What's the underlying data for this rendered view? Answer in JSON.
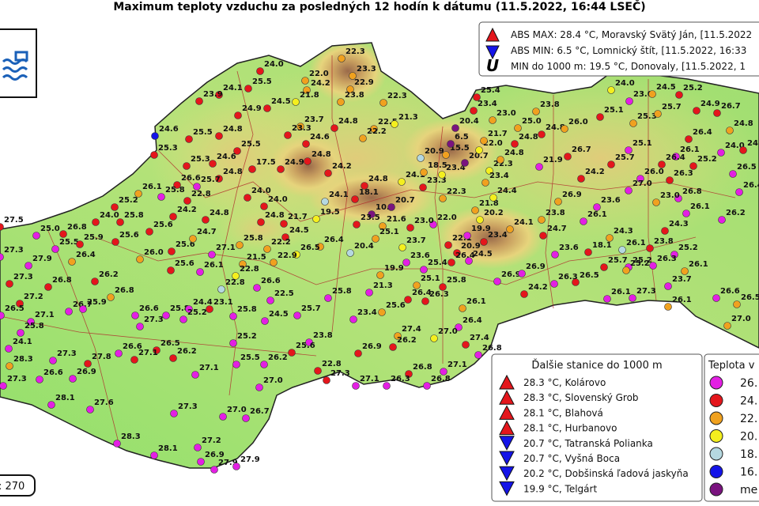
{
  "header": {
    "title": "Maximum teploty vzduchu za posledných 12 hodín k dátumu (11.5.2022, 16:44 LSEČ)"
  },
  "extremes": {
    "items": [
      "ABS MAX: 28.4 °C, Moravský Svätý Ján, [11.5.2022",
      "ABS MIN: 6.5 °C, Lomnický štít, [11.5.2022, 16:33",
      "MIN do 1000 m: 19.5 °C, Donovaly, [11.5.2022, 1"
    ]
  },
  "station_count": ": 270",
  "stations": {
    "labels": [
      "24.0",
      "25.5",
      "24.1",
      "23.9",
      "24.9",
      "24.5",
      "22.3",
      "22.0",
      "23.3",
      "24.2",
      "22.9",
      "21.8",
      "23.8",
      "22.3",
      "23.7",
      "24.8",
      "22.5",
      "21.3",
      "22.2",
      "23.3",
      "24.6",
      "24.8",
      "24.9",
      "25.5",
      "24.6",
      "24.8",
      "25.3",
      "17.5",
      "24.6",
      "25.5",
      "24.8",
      "25.3",
      "26.6",
      "25.7",
      "22.8",
      "26.1",
      "25.8",
      "25.2",
      "24.0",
      "25.8",
      "26.8",
      "25.0",
      "27.5",
      "25.5",
      "25.9",
      "25.6",
      "25.6",
      "24.2",
      "24.8",
      "24.0",
      "24.0",
      "24.8",
      "21.7",
      "19.5",
      "24.1",
      "18.1",
      "10.4",
      "20.7",
      "24.1",
      "24.8",
      "24.2",
      "23.3",
      "22.3",
      "18.5",
      "20.9",
      "23.4",
      "15.5",
      "6.5",
      "20.4",
      "20.7",
      "22.0",
      "21.7",
      "22.3",
      "23.4",
      "21.8",
      "20.2",
      "24.4",
      "23.4",
      "24.1",
      "24.7",
      "23.8",
      "26.9",
      "26.1",
      "23.6",
      "24.3",
      "18.1",
      "26.1",
      "25.2",
      "25.4",
      "23.4",
      "23.0",
      "23.8",
      "25.0",
      "24.8",
      "26.0",
      "24.8",
      "24.8",
      "21.9",
      "26.7",
      "24.2",
      "24.0",
      "23.0",
      "25.1",
      "25.3",
      "24.5",
      "25.2",
      "25.7",
      "24.9",
      "26.7",
      "24.8",
      "26.4",
      "26.1",
      "24.0",
      "24.8",
      "25.1",
      "25.7",
      "26.4",
      "25.2",
      "26.0",
      "26.3",
      "27.0",
      "26.5",
      "26.4",
      "26.8",
      "23.0",
      "26.1",
      "26.2",
      "24.3",
      "23.8",
      "25.2",
      "26.3",
      "25.7",
      "25.2",
      "26.1",
      "23.7",
      "26.6",
      "26.1",
      "27.3",
      "26.1",
      "26.5",
      "27.0",
      "26.5",
      "26.3",
      "24.2",
      "26.9",
      "26.9",
      "23.6",
      "24.5",
      "22.1",
      "20.9",
      "26.4",
      "19.9",
      "22.0",
      "23.0",
      "21.6",
      "25.1",
      "23.5",
      "23.7",
      "23.6",
      "20.4",
      "19.9",
      "26.4",
      "26.5",
      "24.5",
      "22.9",
      "22.2",
      "21.5",
      "25.8",
      "22.8",
      "22.8",
      "27.1",
      "26.1",
      "25.6",
      "25.6",
      "24.7",
      "26.0",
      "26.2",
      "26.8",
      "26.4",
      "27.9",
      "27.3",
      "27.3",
      "26.8",
      "27.2",
      "26.7",
      "25.9",
      "26.5",
      "27.1",
      "25.8",
      "24.1",
      "26.6",
      "25.8",
      "24.4",
      "25.2",
      "23.1",
      "27.3",
      "26.6",
      "26.5",
      "27.3",
      "27.8",
      "27.1",
      "26.2",
      "28.3",
      "27.3",
      "26.6",
      "26.9",
      "27.1",
      "28.1",
      "27.6",
      "27.3",
      "27.2",
      "27.0",
      "26.7",
      "28.3",
      "28.1",
      "26.9",
      "27.9",
      "27.9",
      "25.8",
      "25.2",
      "25.5",
      "26.2",
      "27.0",
      "26.6",
      "22.5",
      "24.5",
      "25.7",
      "23.8",
      "25.6",
      "22.8",
      "27.3",
      "25.8",
      "23.4",
      "21.3",
      "25.6",
      "26.4",
      "26.3",
      "25.1",
      "25.8",
      "26.1",
      "26.4",
      "26.9",
      "27.4",
      "26.2",
      "27.0",
      "27.4",
      "26.8",
      "27.1",
      "26.8",
      "26.3",
      "26.8",
      "27.1",
      "25.4"
    ],
    "colors": "RRRRRROOOOOYOOORO YORRRRRRRRRBRRRRMROMRRRRMRMRRRRRRRRRYLRPPYRRROOLYOPPPYOYOOYYROROOMMOR LMRROOOROROMRRYMROORORRORMMRMRRRMRMMMMOMMRRMMROOMMMMOOORMRMMMMRRRMMROORYMLOOYROOOOYLMMRRO ORO OMMRRRMMMMMMMMMMRMMRMRRROMMMMMMMMMMMMMMMMMMMMMMMMMRRRMMMORROROMRORYRMMRMMMMMMMMMMMMMMMR",
    "palette": {
      "M": "#e31fe3",
      "R": "#e4161c",
      "O": "#f0a11f",
      "Y": "#f4ef1e",
      "L": "#b5d8e0",
      "B": "#1414e8",
      "P": "#7a137f"
    }
  },
  "other_stations": {
    "title": "Ďalšie stanice do 1000 m",
    "items": [
      "28.3 °C, Kolárovo",
      "28.3 °C, Slovenský Grob",
      "28.1 °C, Blahová",
      "28.1 °C, Hurbanovo",
      "20.7 °C, Tatranská Polianka",
      "20.7 °C, Vyšná Boca",
      "20.2 °C, Dobšinská ľadová jaskyňa",
      "19.9 °C, Telgárt"
    ]
  },
  "temperature_legend": {
    "title": "Teplota v",
    "items": [
      {
        "label": "26.",
        "color": "#e31fe3"
      },
      {
        "label": "24.",
        "color": "#e4161c"
      },
      {
        "label": "22.",
        "color": "#f0a11f"
      },
      {
        "label": "20.",
        "color": "#f4ef1e"
      },
      {
        "label": "18.",
        "color": "#b5d8e0"
      },
      {
        "label": "16.",
        "color": "#1414e8"
      },
      {
        "label": "me",
        "color": "#7a137f"
      }
    ]
  }
}
